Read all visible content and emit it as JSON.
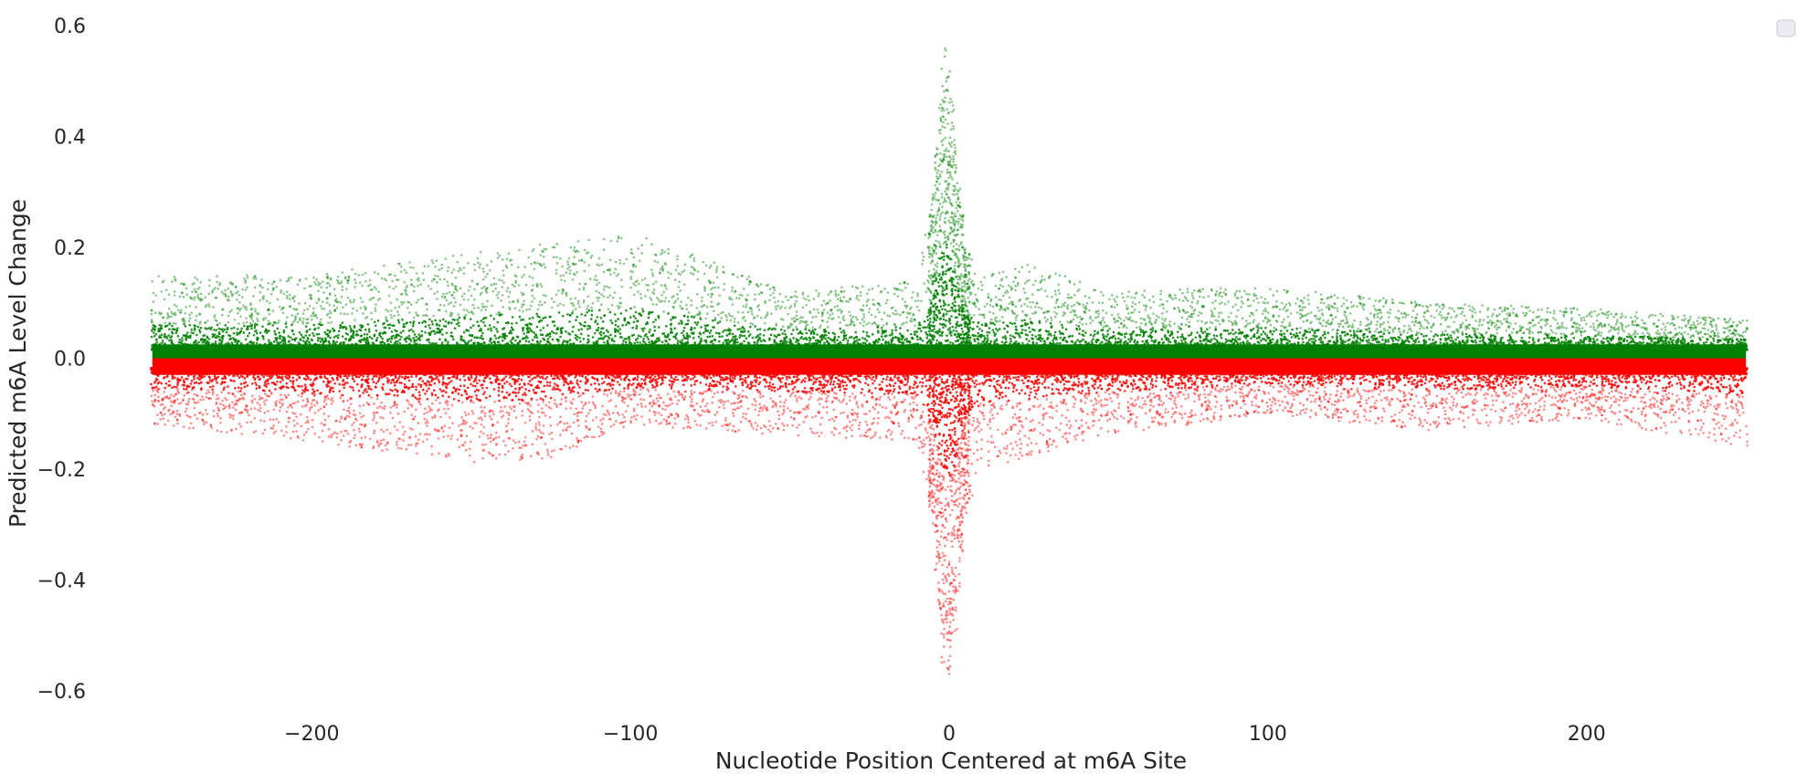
{
  "chart_data": {
    "type": "scatter",
    "title": "",
    "xlabel": "Nucleotide Position Centered at m6A Site",
    "ylabel": "Predicted m6A Level Change",
    "xlim": [
      -268,
      268
    ],
    "ylim": [
      -0.63,
      0.63
    ],
    "x_ticks": [
      -200,
      -100,
      0,
      100,
      200
    ],
    "x_tick_labels": [
      "−200",
      "−100",
      "0",
      "100",
      "200"
    ],
    "y_ticks": [
      -0.6,
      -0.4,
      -0.2,
      0.0,
      0.2,
      0.4,
      0.6
    ],
    "y_tick_labels": [
      "−0.6",
      "−0.4",
      "−0.2",
      "0.0",
      "0.2",
      "0.4",
      "0.6"
    ],
    "grid": false,
    "legend": {
      "placement": "top-right",
      "entries": []
    },
    "position_range": [
      -250,
      250
    ],
    "series": [
      {
        "sign": "positive",
        "color": "#008000",
        "peak_profile": [
          {
            "x": -250,
            "y": 0.15
          },
          {
            "x": -200,
            "y": 0.15
          },
          {
            "x": -150,
            "y": 0.19
          },
          {
            "x": -100,
            "y": 0.23
          },
          {
            "x": -50,
            "y": 0.12
          },
          {
            "x": -10,
            "y": 0.14
          },
          {
            "x": -5,
            "y": 0.3
          },
          {
            "x": -3,
            "y": 0.48
          },
          {
            "x": -1,
            "y": 0.57
          },
          {
            "x": 1,
            "y": 0.47
          },
          {
            "x": 3,
            "y": 0.32
          },
          {
            "x": 5,
            "y": 0.2
          },
          {
            "x": 10,
            "y": 0.15
          },
          {
            "x": 25,
            "y": 0.17
          },
          {
            "x": 50,
            "y": 0.12
          },
          {
            "x": 100,
            "y": 0.13
          },
          {
            "x": 150,
            "y": 0.1
          },
          {
            "x": 200,
            "y": 0.09
          },
          {
            "x": 250,
            "y": 0.07
          }
        ]
      },
      {
        "sign": "negative",
        "color": "#ff0000",
        "peak_profile": [
          {
            "x": -250,
            "y": -0.12
          },
          {
            "x": -200,
            "y": -0.15
          },
          {
            "x": -150,
            "y": -0.19
          },
          {
            "x": -125,
            "y": -0.18
          },
          {
            "x": -100,
            "y": -0.12
          },
          {
            "x": -50,
            "y": -0.14
          },
          {
            "x": -10,
            "y": -0.15
          },
          {
            "x": -5,
            "y": -0.3
          },
          {
            "x": -2,
            "y": -0.55
          },
          {
            "x": 0,
            "y": -0.57
          },
          {
            "x": 2,
            "y": -0.5
          },
          {
            "x": 5,
            "y": -0.28
          },
          {
            "x": 10,
            "y": -0.2
          },
          {
            "x": 50,
            "y": -0.14
          },
          {
            "x": 100,
            "y": -0.1
          },
          {
            "x": 150,
            "y": -0.13
          },
          {
            "x": 200,
            "y": -0.11
          },
          {
            "x": 250,
            "y": -0.16
          }
        ]
      }
    ]
  }
}
